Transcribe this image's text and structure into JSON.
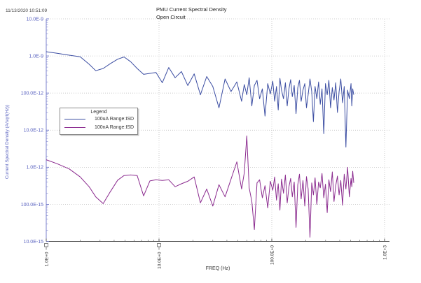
{
  "header": {
    "timestamp": "11/13/2020 10:51:09",
    "title_line1": "PMU Current Spectral Density",
    "title_line2": "Open Circuit"
  },
  "legend": {
    "title": "Legend",
    "entries": [
      {
        "label": "100uA Range:ISD",
        "color": "#3b4da2"
      },
      {
        "label": "100nA Range:ISD",
        "color": "#8b2b8f"
      }
    ]
  },
  "colors": {
    "y_axis": "#7b82cc",
    "y_text": "#5a63c0",
    "x_axis": "#555555",
    "x_text": "#3a3a3a",
    "grid": "#c0c0c0",
    "title_text": "#222222"
  },
  "chart_data": {
    "type": "line",
    "title": "PMU Current Spectral Density - Open Circuit",
    "xlabel": "FREQ (Hz)",
    "ylabel": "Current Spectral Density (A/sqrt(Hz))",
    "x_scale": "log",
    "y_scale": "log",
    "xlim": [
      1,
      1100
    ],
    "ylim": [
      1e-14,
      1e-08
    ],
    "grid": "dotted",
    "legend_position": "left-middle",
    "x_ticks": [
      {
        "value": 1,
        "label": "1.0E+0",
        "cursor_pin": true
      },
      {
        "value": 10,
        "label": "10.0E+0",
        "cursor_pin": true
      },
      {
        "value": 100,
        "label": "100.0E+0",
        "cursor_pin": false
      },
      {
        "value": 1000,
        "label": "1.0E+3",
        "cursor_pin": false
      }
    ],
    "y_ticks": [
      {
        "value": 1e-08,
        "label": "10.0E-9"
      },
      {
        "value": 1e-09,
        "label": "1.0E-9"
      },
      {
        "value": 1e-10,
        "label": "100.0E-12"
      },
      {
        "value": 1e-11,
        "label": "10.0E-12"
      },
      {
        "value": 1e-12,
        "label": "1.0E-12"
      },
      {
        "value": 1e-13,
        "label": "100.0E-15"
      },
      {
        "value": 1e-14,
        "label": "10.0E-15"
      }
    ],
    "x": [
      1,
      1.25,
      1.6,
      2,
      2.4,
      2.75,
      3.2,
      3.7,
      4.3,
      4.9,
      5.6,
      6.4,
      7.3,
      8.3,
      9.4,
      10.7,
      12.2,
      13.9,
      15.8,
      18,
      20.5,
      23.3,
      26.5,
      30,
      34,
      38.5,
      43.5,
      49,
      54,
      57,
      60,
      63,
      66.5,
      70,
      74,
      78,
      82.5,
      87,
      92,
      97,
      102,
      106,
      110,
      114,
      118,
      122,
      127,
      132,
      137,
      142,
      147,
      152,
      158,
      164,
      170,
      176,
      182,
      189,
      196,
      203,
      210,
      218,
      226,
      234,
      242,
      251,
      260,
      269,
      279,
      289,
      299,
      310,
      321,
      332,
      344,
      356,
      369,
      382,
      395,
      409,
      424,
      439,
      454,
      470,
      487,
      504,
      512,
      522,
      533
    ],
    "series": [
      {
        "name": "100uA Range:ISD",
        "color": "#3b4da2",
        "values": [
          1.3e-09,
          1.18e-09,
          1.05e-09,
          9.5e-10,
          6e-10,
          4e-10,
          4.6e-10,
          6.2e-10,
          8.2e-10,
          9.4e-10,
          7e-10,
          4.6e-10,
          3.2e-10,
          3.4e-10,
          3.6e-10,
          1.9e-10,
          4.9e-10,
          2.6e-10,
          3.8e-10,
          1.6e-10,
          3.3e-10,
          9e-11,
          2.8e-10,
          1.5e-10,
          4e-11,
          2.4e-10,
          1.1e-10,
          2e-10,
          6e-11,
          1.7e-10,
          9e-11,
          2.6e-10,
          4.5e-11,
          1.6e-10,
          2.2e-10,
          7e-11,
          1.3e-10,
          2.4e-11,
          1.8e-10,
          9.5e-11,
          2.1e-10,
          6e-11,
          1.5e-10,
          3.5e-11,
          2.5e-10,
          1.2e-10,
          7e-11,
          1.9e-10,
          4.5e-11,
          1.3e-10,
          2.3e-10,
          8e-11,
          1.6e-10,
          2.8e-11,
          1.4e-10,
          2.2e-10,
          6e-11,
          1.2e-10,
          1.8e-10,
          4e-11,
          9e-11,
          2.4e-10,
          1.1e-10,
          1.7e-11,
          1.5e-10,
          7e-11,
          2e-10,
          5e-11,
          1.3e-10,
          8e-12,
          1.8e-10,
          9e-11,
          2.2e-10,
          4e-11,
          1.4e-10,
          6.5e-11,
          1.9e-10,
          3e-11,
          1.1e-10,
          2.4e-10,
          5.5e-11,
          1.5e-10,
          3.5e-12,
          1.2e-10,
          7e-11,
          1.8e-10,
          4.5e-11,
          1.3e-10,
          9e-11
        ]
      },
      {
        "name": "100nA Range:ISD",
        "color": "#8b2b8f",
        "values": [
          1.6e-12,
          1.25e-12,
          9e-13,
          5.5e-13,
          3e-13,
          1.6e-13,
          1.05e-13,
          2.2e-13,
          4.5e-13,
          6e-13,
          6.2e-13,
          6e-13,
          1.7e-13,
          4.3e-13,
          4.6e-13,
          4.4e-13,
          4.6e-13,
          3e-13,
          3.6e-13,
          4.2e-13,
          5.5e-13,
          1.1e-13,
          2.6e-13,
          9e-14,
          3.4e-13,
          1.6e-13,
          4.8e-13,
          1.4e-12,
          2.6e-13,
          7e-13,
          7e-12,
          2.8e-13,
          1.2e-13,
          2.1e-14,
          3.8e-13,
          4.6e-13,
          1.5e-13,
          3.2e-13,
          8e-14,
          4.2e-13,
          2.4e-13,
          5.5e-13,
          1.3e-13,
          3.6e-13,
          7e-14,
          4.8e-13,
          2e-13,
          6.2e-13,
          1.1e-13,
          3e-13,
          5e-13,
          1.6e-13,
          4e-13,
          2.4e-14,
          3.4e-13,
          6.5e-13,
          1.4e-13,
          4.4e-13,
          9e-14,
          5.6e-13,
          2.6e-13,
          1.3e-14,
          3.8e-13,
          1.8e-13,
          5.2e-13,
          1e-13,
          4e-13,
          2.8e-13,
          6.8e-13,
          1.5e-13,
          3.5e-13,
          6e-14,
          4.6e-13,
          2.2e-13,
          7.5e-13,
          1.2e-13,
          3.2e-13,
          5.8e-13,
          1.8e-13,
          4.4e-13,
          9.5e-14,
          6.5e-13,
          2.6e-13,
          1e-12,
          1.6e-13,
          5e-13,
          3e-13,
          7.8e-13,
          3.8e-13
        ]
      }
    ]
  }
}
